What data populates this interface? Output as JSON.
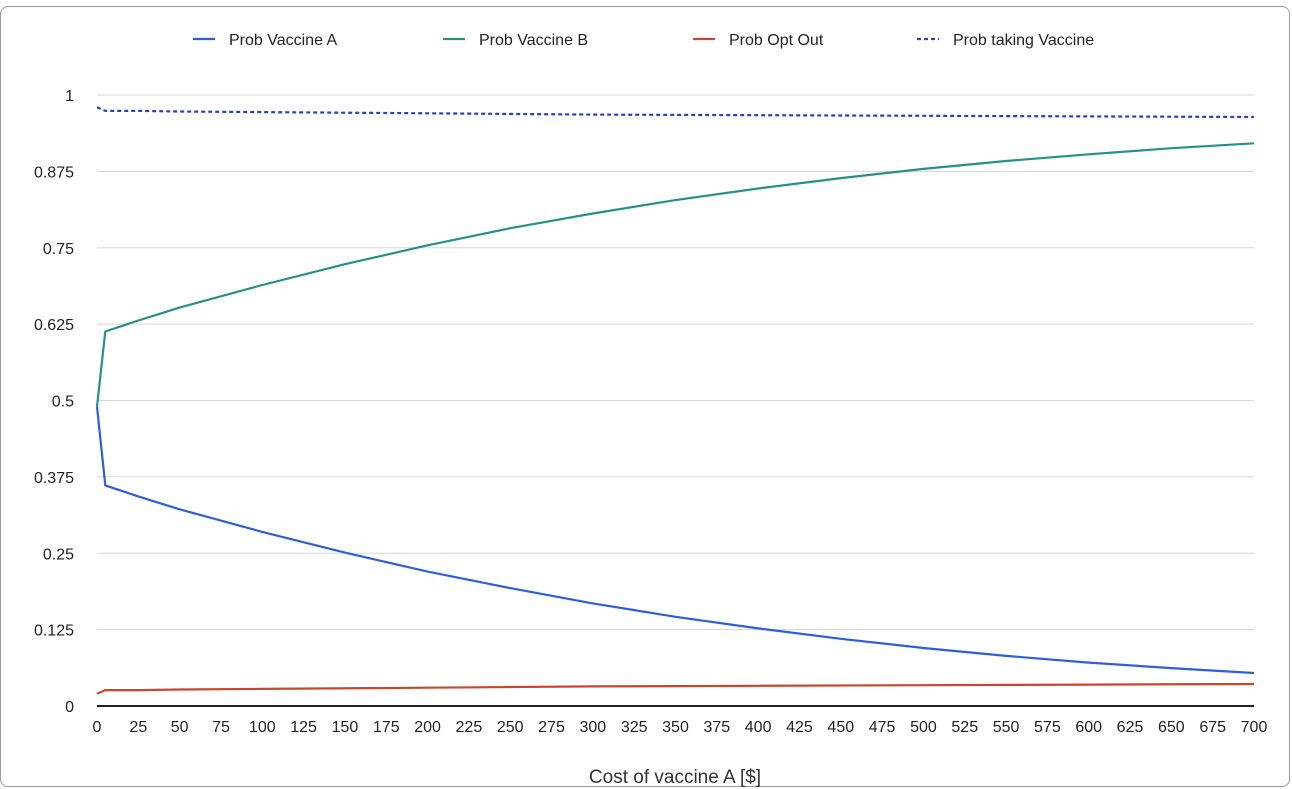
{
  "chart_data": {
    "type": "line",
    "title": "",
    "xlabel": "Cost of vaccine A [$]",
    "ylabel": "",
    "xlim": [
      0,
      700
    ],
    "ylim": [
      0,
      1
    ],
    "x_ticks": [
      "0",
      "25",
      "50",
      "75",
      "100",
      "125",
      "150",
      "175",
      "200",
      "225",
      "250",
      "275",
      "300",
      "325",
      "350",
      "375",
      "400",
      "425",
      "450",
      "475",
      "500",
      "525",
      "550",
      "575",
      "600",
      "625",
      "650",
      "675",
      "700"
    ],
    "y_ticks": [
      "0",
      "0.125",
      "0.25",
      "0.375",
      "0.5",
      "0.625",
      "0.75",
      "0.875",
      "1"
    ],
    "grid": true,
    "legend_position": "top",
    "series": [
      {
        "name": "Prob Vaccine A",
        "color": "#2f5fd6",
        "dash": "solid",
        "x": [
          0,
          5,
          25,
          50,
          100,
          150,
          200,
          250,
          300,
          350,
          400,
          450,
          500,
          550,
          600,
          650,
          700
        ],
        "y": [
          0.49,
          0.361,
          0.343,
          0.322,
          0.285,
          0.251,
          0.22,
          0.193,
          0.168,
          0.146,
          0.127,
          0.11,
          0.095,
          0.082,
          0.071,
          0.062,
          0.054
        ]
      },
      {
        "name": "Prob Vaccine B",
        "color": "#269184",
        "dash": "solid",
        "x": [
          0,
          5,
          25,
          50,
          100,
          150,
          200,
          250,
          300,
          350,
          400,
          450,
          500,
          550,
          600,
          650,
          700
        ],
        "y": [
          0.49,
          0.613,
          0.631,
          0.652,
          0.689,
          0.723,
          0.754,
          0.782,
          0.806,
          0.828,
          0.847,
          0.864,
          0.879,
          0.892,
          0.903,
          0.913,
          0.921
        ]
      },
      {
        "name": "Prob Opt Out",
        "color": "#c8472b",
        "dash": "solid",
        "x": [
          0,
          5,
          25,
          50,
          100,
          200,
          300,
          400,
          500,
          600,
          700
        ],
        "y": [
          0.02,
          0.026,
          0.026,
          0.027,
          0.028,
          0.03,
          0.032,
          0.033,
          0.034,
          0.035,
          0.036
        ]
      },
      {
        "name": "Prob taking Vaccine",
        "color": "#2a3fc4",
        "dash": "dotted",
        "x": [
          0,
          5,
          25,
          50,
          100,
          200,
          300,
          400,
          500,
          600,
          700
        ],
        "y": [
          0.98,
          0.974,
          0.974,
          0.973,
          0.972,
          0.97,
          0.968,
          0.967,
          0.966,
          0.965,
          0.964
        ]
      }
    ]
  }
}
